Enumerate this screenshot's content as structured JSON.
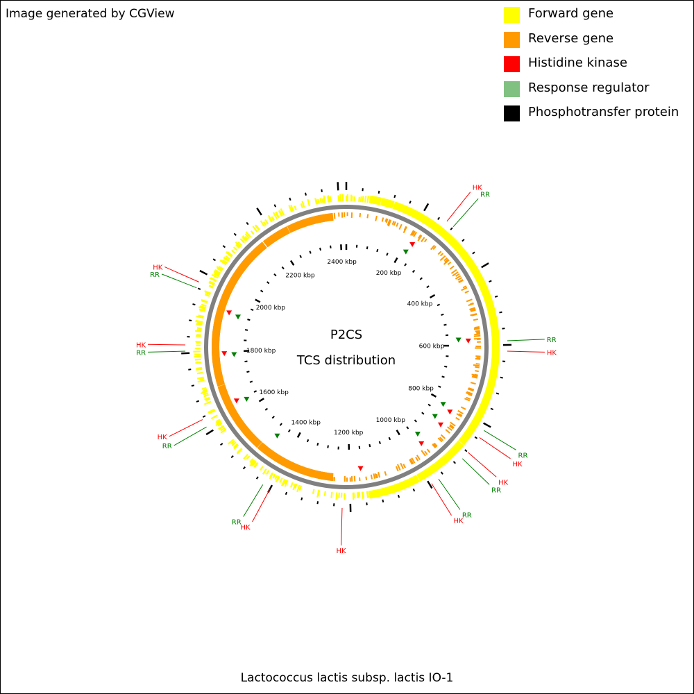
{
  "header": {
    "credit": "Image generated by CGView"
  },
  "legend": {
    "items": [
      {
        "label": "Forward gene",
        "color": "#ffff00"
      },
      {
        "label": "Reverse gene",
        "color": "#ff9a00"
      },
      {
        "label": "Histidine kinase",
        "color": "#ff0000"
      },
      {
        "label": "Response regulator",
        "color": "#80c080"
      },
      {
        "label": "Phosphotransfer protein",
        "color": "#000000"
      }
    ]
  },
  "map": {
    "title_line1": "P2CS",
    "title_line2": "TCS distribution",
    "organism": "Lactococcus lactis subsp. lactis IO-1",
    "genome_length_kbp": 2420,
    "tick_labels": [
      {
        "kbp": 200,
        "label": "200 kbp"
      },
      {
        "kbp": 400,
        "label": "400 kbp"
      },
      {
        "kbp": 600,
        "label": "600 kbp"
      },
      {
        "kbp": 800,
        "label": "800 kbp"
      },
      {
        "kbp": 1000,
        "label": "1000 kbp"
      },
      {
        "kbp": 1200,
        "label": "1200 kbp"
      },
      {
        "kbp": 1400,
        "label": "1400 kbp"
      },
      {
        "kbp": 1600,
        "label": "1600 kbp"
      },
      {
        "kbp": 1800,
        "label": "1800 kbp"
      },
      {
        "kbp": 2000,
        "label": "2000 kbp"
      },
      {
        "kbp": 2200,
        "label": "2200 kbp"
      },
      {
        "kbp": 2400,
        "label": "2400 kbp"
      }
    ],
    "tcs_labels": [
      {
        "kbp": 260,
        "text": "HK",
        "type": "HK"
      },
      {
        "kbp": 280,
        "text": "RR",
        "type": "RR"
      },
      {
        "kbp": 590,
        "text": "RR",
        "type": "RR"
      },
      {
        "kbp": 615,
        "text": "HK",
        "type": "HK"
      },
      {
        "kbp": 815,
        "text": "RR",
        "type": "RR"
      },
      {
        "kbp": 835,
        "text": "HK",
        "type": "HK"
      },
      {
        "kbp": 880,
        "text": "HK",
        "type": "HK"
      },
      {
        "kbp": 900,
        "text": "RR",
        "type": "RR"
      },
      {
        "kbp": 975,
        "text": "RR",
        "type": "RR"
      },
      {
        "kbp": 995,
        "text": "HK",
        "type": "HK"
      },
      {
        "kbp": 1220,
        "text": "HK",
        "type": "HK"
      },
      {
        "kbp": 1400,
        "text": "HK",
        "type": "HK"
      },
      {
        "kbp": 1420,
        "text": "RR",
        "type": "RR"
      },
      {
        "kbp": 1615,
        "text": "RR",
        "type": "RR"
      },
      {
        "kbp": 1635,
        "text": "HK",
        "type": "HK"
      },
      {
        "kbp": 1805,
        "text": "RR",
        "type": "RR"
      },
      {
        "kbp": 1820,
        "text": "HK",
        "type": "HK"
      },
      {
        "kbp": 1960,
        "text": "RR",
        "type": "RR"
      },
      {
        "kbp": 1975,
        "text": "HK",
        "type": "HK"
      }
    ],
    "tcs_markers": [
      {
        "kbp": 215,
        "type": "RR"
      },
      {
        "kbp": 220,
        "type": "HK"
      },
      {
        "kbp": 580,
        "type": "RR"
      },
      {
        "kbp": 585,
        "type": "HK"
      },
      {
        "kbp": 810,
        "type": "RR"
      },
      {
        "kbp": 820,
        "type": "HK"
      },
      {
        "kbp": 860,
        "type": "RR"
      },
      {
        "kbp": 870,
        "type": "HK"
      },
      {
        "kbp": 945,
        "type": "RR"
      },
      {
        "kbp": 955,
        "type": "HK"
      },
      {
        "kbp": 1165,
        "type": "HK"
      },
      {
        "kbp": 1465,
        "type": "RR"
      },
      {
        "kbp": 1630,
        "type": "RR"
      },
      {
        "kbp": 1640,
        "type": "HK"
      },
      {
        "kbp": 1790,
        "type": "RR"
      },
      {
        "kbp": 1795,
        "type": "HK"
      },
      {
        "kbp": 1920,
        "type": "RR"
      },
      {
        "kbp": 1925,
        "type": "HK"
      }
    ],
    "colors": {
      "hk": "#ff0000",
      "rr": "#008000",
      "backbone": "#808080",
      "phosphotransfer": "#000000"
    }
  }
}
